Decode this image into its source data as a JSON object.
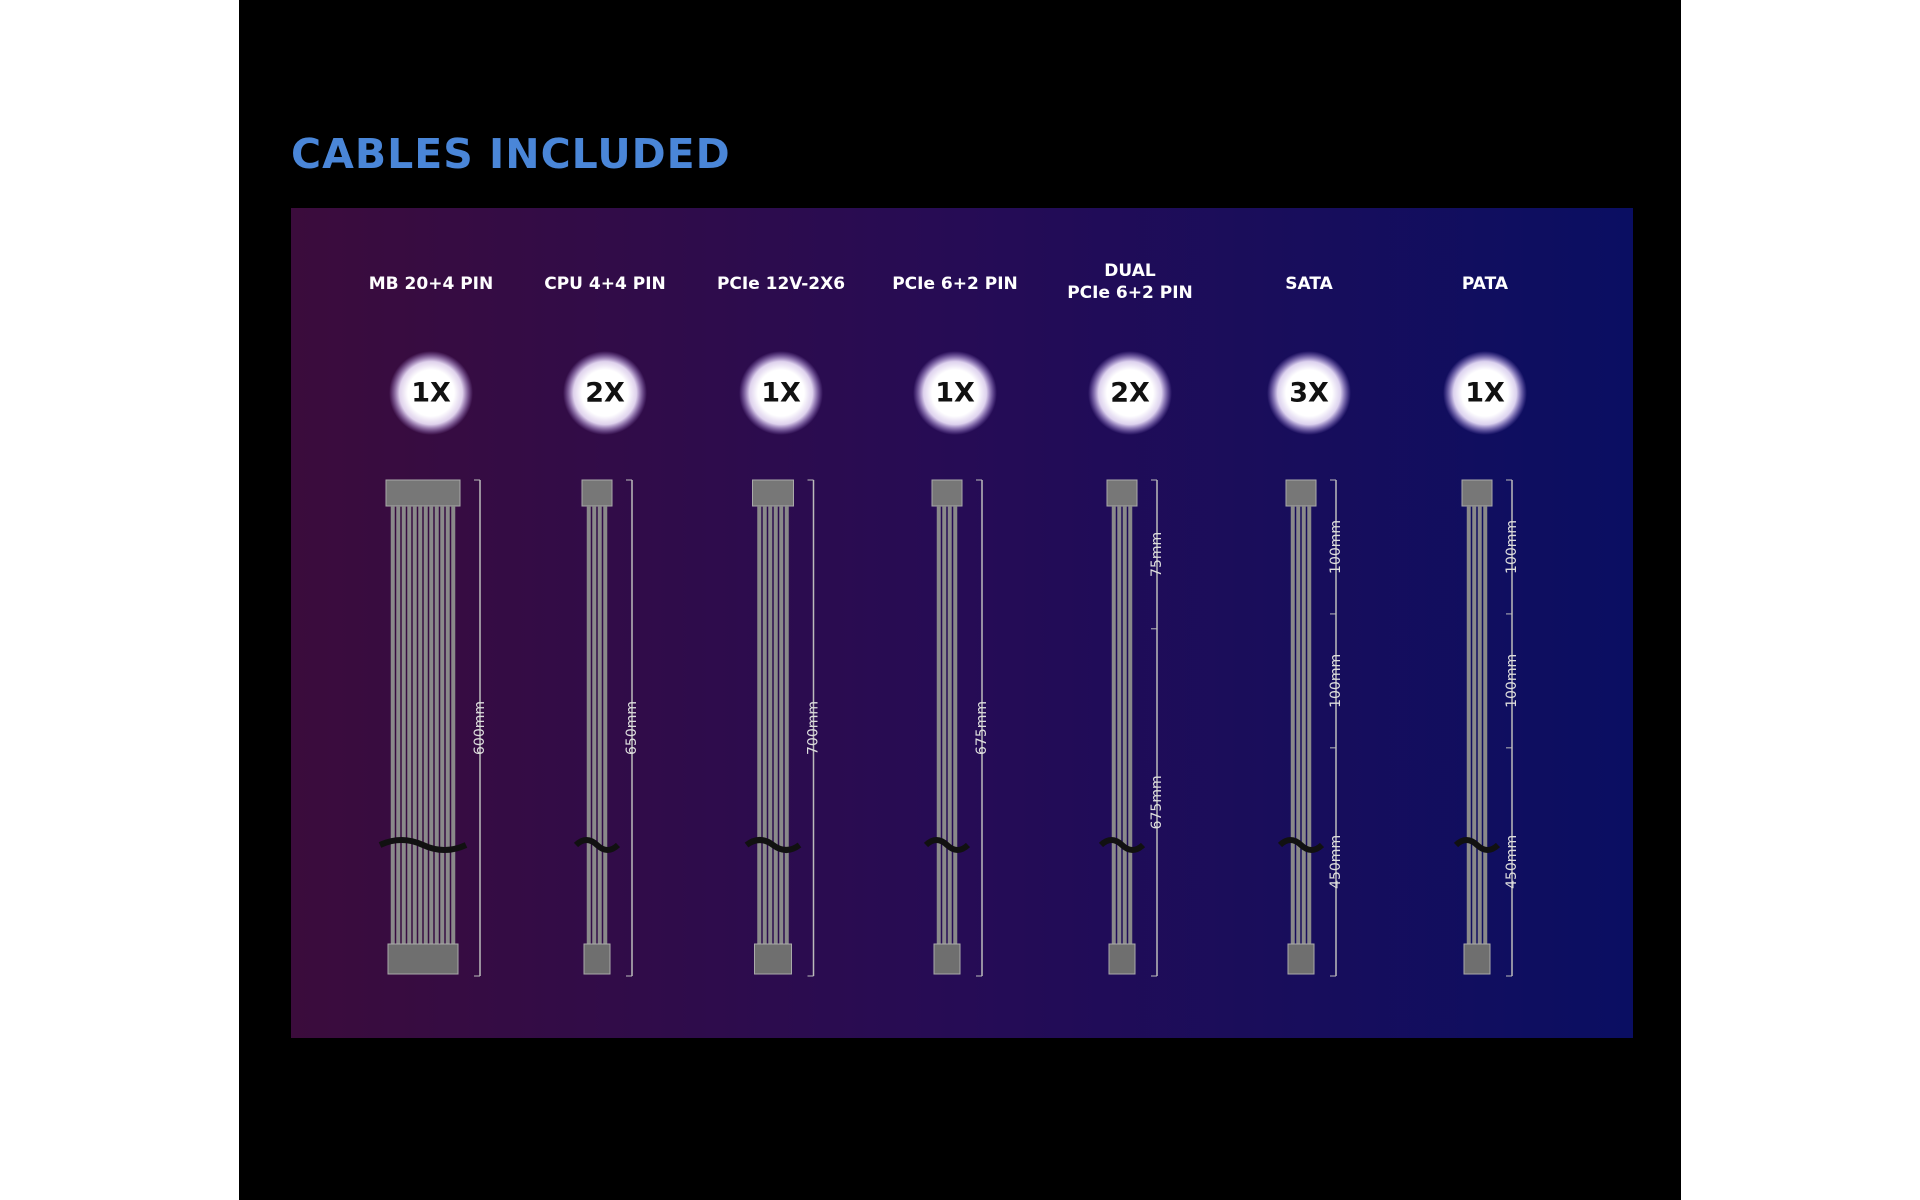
{
  "title": "CABLES INCLUDED",
  "cables": [
    {
      "label": [
        "MB 20+4 PIN"
      ],
      "count": "1X",
      "lengths": [
        "600mm"
      ]
    },
    {
      "label": [
        "CPU 4+4 PIN"
      ],
      "count": "2X",
      "lengths": [
        "650mm"
      ]
    },
    {
      "label": [
        "PCIe 12V-2X6"
      ],
      "count": "1X",
      "lengths": [
        "700mm"
      ]
    },
    {
      "label": [
        "PCIe 6+2 PIN"
      ],
      "count": "1X",
      "lengths": [
        "675mm"
      ]
    },
    {
      "label": [
        "DUAL",
        "PCIe 6+2 PIN"
      ],
      "count": "2X",
      "lengths": [
        "75mm",
        "675mm"
      ]
    },
    {
      "label": [
        "SATA"
      ],
      "count": "3X",
      "lengths": [
        "100mm",
        "100mm",
        "450mm"
      ]
    },
    {
      "label": [
        "PATA"
      ],
      "count": "1X",
      "lengths": [
        "100mm",
        "100mm",
        "450mm"
      ]
    }
  ]
}
